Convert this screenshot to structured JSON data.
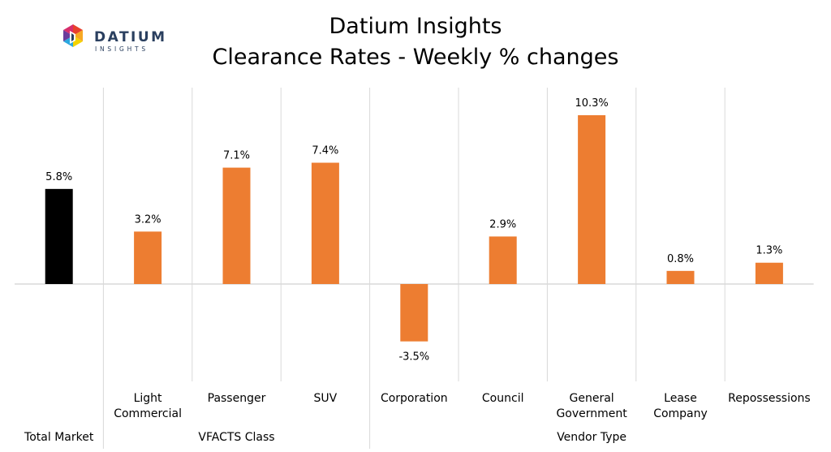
{
  "brand": {
    "name": "DATIUM",
    "tagline": "INSIGHTS"
  },
  "chart_data": {
    "type": "bar",
    "title": "Datium Insights",
    "subtitle": "Clearance Rates - Weekly % changes",
    "categories": [
      {
        "label": [
          "Total Market"
        ],
        "group": "Total Market"
      },
      {
        "label": [
          "Light",
          "Commercial"
        ],
        "group": "VFACTS Class"
      },
      {
        "label": [
          "Passenger"
        ],
        "group": "VFACTS Class"
      },
      {
        "label": [
          "SUV"
        ],
        "group": "VFACTS Class"
      },
      {
        "label": [
          "Corporation"
        ],
        "group": "Vendor Type"
      },
      {
        "label": [
          "Council"
        ],
        "group": "Vendor Type"
      },
      {
        "label": [
          "General",
          "Government"
        ],
        "group": "Vendor Type"
      },
      {
        "label": [
          "Lease",
          "Company"
        ],
        "group": "Vendor Type"
      },
      {
        "label": [
          "Repossessions"
        ],
        "group": "Vendor Type"
      }
    ],
    "values": [
      5.8,
      3.2,
      7.1,
      7.4,
      -3.5,
      2.9,
      10.3,
      0.8,
      1.3
    ],
    "data_labels": [
      "5.8%",
      "3.2%",
      "7.1%",
      "7.4%",
      "-3.5%",
      "2.9%",
      "10.3%",
      "0.8%",
      "1.3%"
    ],
    "groups": [
      "Total Market",
      "VFACTS Class",
      "Vendor Type"
    ],
    "colors": [
      "#000000",
      "#ED7D31",
      "#ED7D31",
      "#ED7D31",
      "#ED7D31",
      "#ED7D31",
      "#ED7D31",
      "#ED7D31",
      "#ED7D31"
    ],
    "gridline_color": "#D9D9D9",
    "ylim": [
      -6.5,
      12
    ],
    "xlabel": "",
    "ylabel": "",
    "grid": true,
    "legend": "none"
  }
}
